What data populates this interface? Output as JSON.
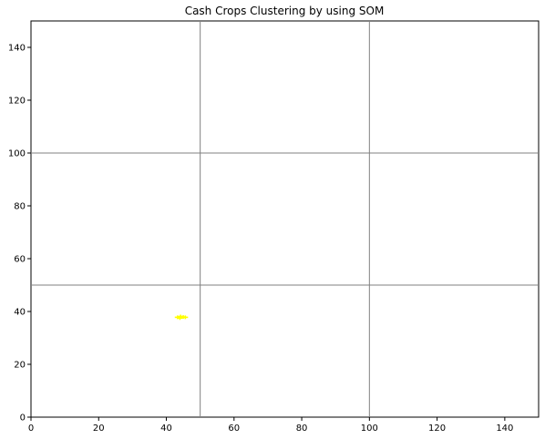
{
  "chart_data": {
    "type": "scatter",
    "title": "Cash Crops Clustering by using SOM",
    "xlabel": "",
    "ylabel": "",
    "xlim": [
      0,
      150
    ],
    "ylim": [
      0,
      150
    ],
    "xticks": [
      0,
      20,
      40,
      60,
      80,
      100,
      120,
      140
    ],
    "yticks": [
      0,
      20,
      40,
      60,
      80,
      100,
      120,
      140
    ],
    "x_tick_labels": [
      "0",
      "20",
      "40",
      "60",
      "80",
      "100",
      "120",
      "140"
    ],
    "y_tick_labels": [
      "0",
      "20",
      "40",
      "60",
      "80",
      "100",
      "120",
      "140"
    ],
    "grid_lines": {
      "x": [
        50,
        100
      ],
      "y": [
        50,
        100
      ],
      "color": "#808080"
    },
    "series": [
      {
        "color": "#ffff00",
        "marker": "plus",
        "points": [
          {
            "x": 43.3,
            "y": 37.8
          },
          {
            "x": 44.2,
            "y": 38.1
          },
          {
            "x": 45.0,
            "y": 37.9
          },
          {
            "x": 44.0,
            "y": 37.5
          },
          {
            "x": 45.6,
            "y": 37.8
          }
        ]
      }
    ]
  }
}
